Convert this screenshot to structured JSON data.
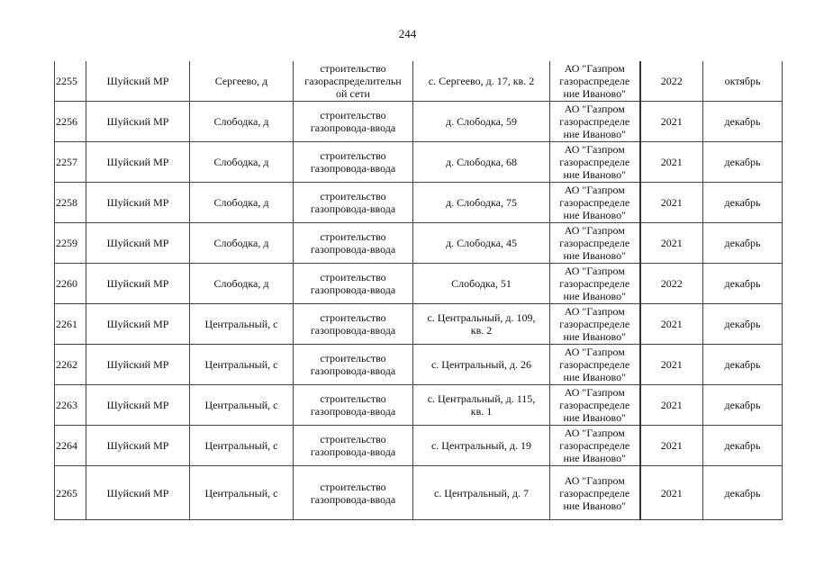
{
  "page_number": "244",
  "rows": [
    {
      "no": "2255",
      "district": "Шуйский МР",
      "locality": "Сергеево, д",
      "work": "строительство\nгазораспределительн\nой сети",
      "address": "с. Сергеево, д. 17, кв. 2",
      "org": "АО \"Газпром\nгазораспределе\nние Иваново\"",
      "year": "2022",
      "month": "октябрь"
    },
    {
      "no": "2256",
      "district": "Шуйский МР",
      "locality": "Слободка, д",
      "work": "строительство\nгазопровода-ввода",
      "address": "д. Слободка, 59",
      "org": "АО \"Газпром\nгазораспределе\nние Иваново\"",
      "year": "2021",
      "month": "декабрь"
    },
    {
      "no": "2257",
      "district": "Шуйский МР",
      "locality": "Слободка, д",
      "work": "строительство\nгазопровода-ввода",
      "address": "д. Слободка, 68",
      "org": "АО \"Газпром\nгазораспределе\nние Иваново\"",
      "year": "2021",
      "month": "декабрь"
    },
    {
      "no": "2258",
      "district": "Шуйский МР",
      "locality": "Слободка, д",
      "work": "строительство\nгазопровода-ввода",
      "address": "д. Слободка, 75",
      "org": "АО \"Газпром\nгазораспределе\nние Иваново\"",
      "year": "2021",
      "month": "декабрь"
    },
    {
      "no": "2259",
      "district": "Шуйский МР",
      "locality": "Слободка, д",
      "work": "строительство\nгазопровода-ввода",
      "address": "д. Слободка, 45",
      "org": "АО \"Газпром\nгазораспределе\nние Иваново\"",
      "year": "2021",
      "month": "декабрь"
    },
    {
      "no": "2260",
      "district": "Шуйский МР",
      "locality": "Слободка, д",
      "work": "строительство\nгазопровода-ввода",
      "address": "Слободка, 51",
      "org": "АО \"Газпром\nгазораспределе\nние Иваново\"",
      "year": "2022",
      "month": "декабрь"
    },
    {
      "no": "2261",
      "district": "Шуйский МР",
      "locality": "Центральный, с",
      "work": "строительство\nгазопровода-ввода",
      "address": "с. Центральный, д. 109,\nкв. 2",
      "org": "АО \"Газпром\nгазораспределе\nние Иваново\"",
      "year": "2021",
      "month": "декабрь"
    },
    {
      "no": "2262",
      "district": "Шуйский МР",
      "locality": "Центральный, с",
      "work": "строительство\nгазопровода-ввода",
      "address": "с. Центральный, д. 26",
      "org": "АО \"Газпром\nгазораспределе\nние Иваново\"",
      "year": "2021",
      "month": "декабрь"
    },
    {
      "no": "2263",
      "district": "Шуйский МР",
      "locality": "Центральный, с",
      "work": "строительство\nгазопровода-ввода",
      "address": "с. Центральный, д. 115,\nкв. 1",
      "org": "АО \"Газпром\nгазораспределе\nние Иваново\"",
      "year": "2021",
      "month": "декабрь"
    },
    {
      "no": "2264",
      "district": "Шуйский МР",
      "locality": "Центральный, с",
      "work": "строительство\nгазопровода-ввода",
      "address": "с. Центральный, д. 19",
      "org": "АО \"Газпром\nгазораспределе\nние Иваново\"",
      "year": "2021",
      "month": "декабрь"
    },
    {
      "no": "2265",
      "district": "Шуйский МР",
      "locality": "Центральный, с",
      "work": "строительство\nгазопровода-ввода",
      "address": "с. Центральный, д. 7",
      "org": "АО \"Газпром\nгазораспределе\nние Иваново\"",
      "year": "2021",
      "month": "декабрь"
    }
  ]
}
